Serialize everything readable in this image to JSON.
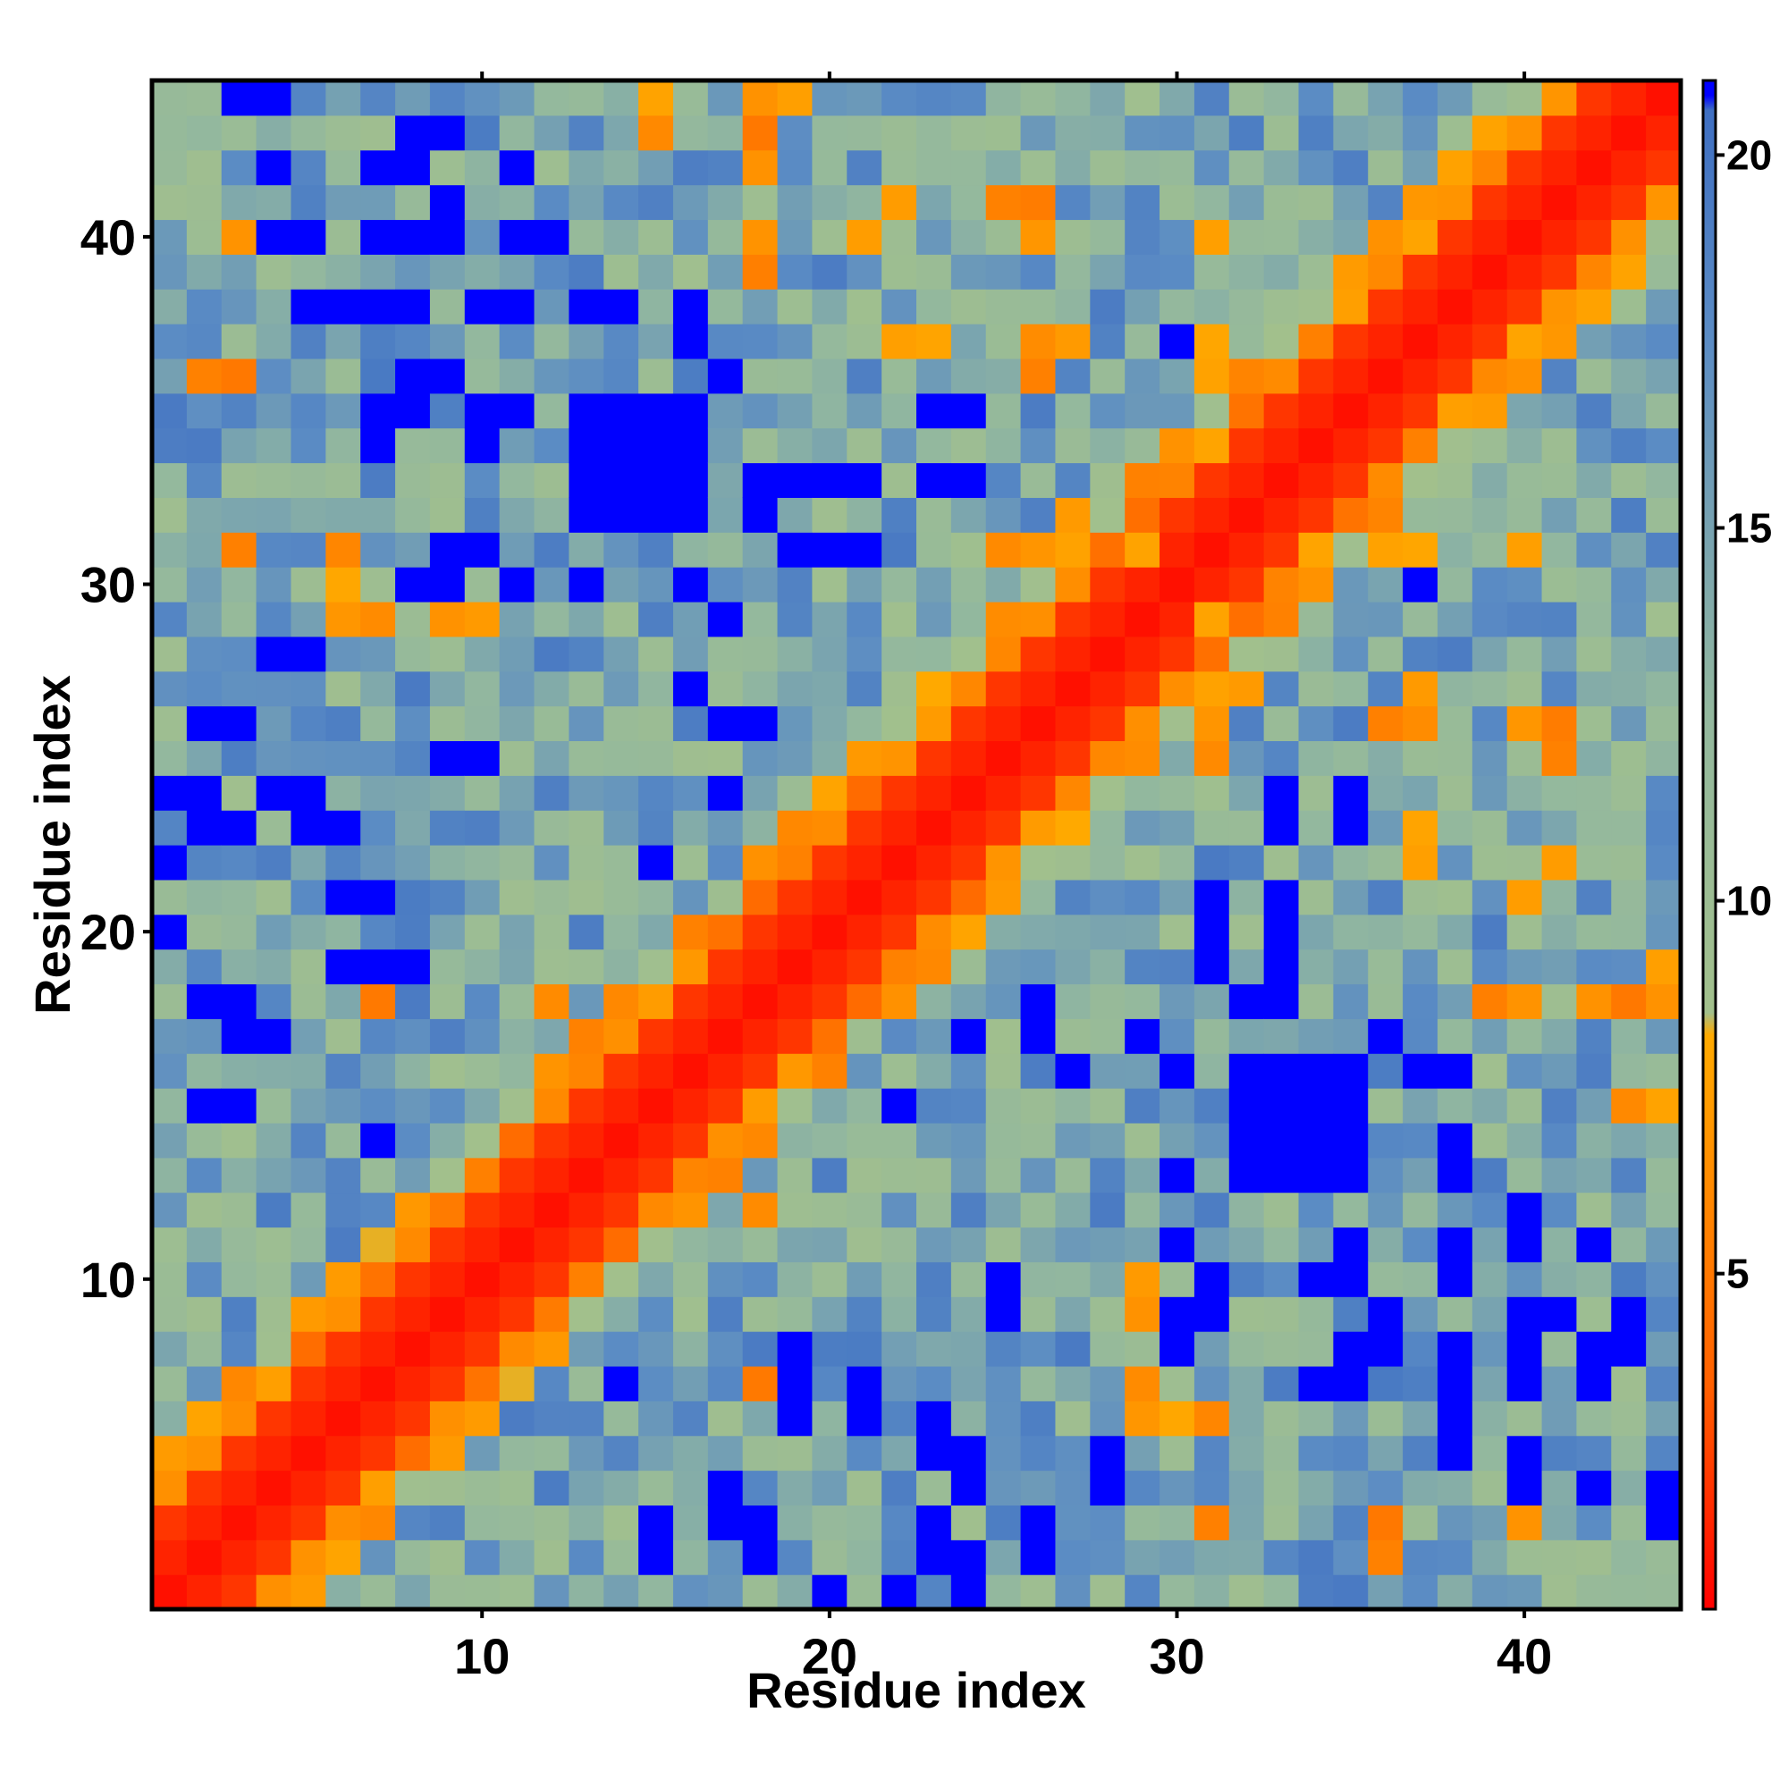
{
  "chart_data": {
    "type": "heatmap",
    "title": "",
    "xlabel": "Residue index",
    "ylabel": "Residue index",
    "n_residues": 44,
    "xlim": [
      0.5,
      44.5
    ],
    "ylim": [
      0.5,
      44.5
    ],
    "x_ticks": [
      10,
      20,
      30,
      40
    ],
    "y_ticks": [
      10,
      20,
      30,
      40
    ],
    "x_tick_labels": [
      "10",
      "20",
      "30",
      "40"
    ],
    "y_tick_labels": [
      "10",
      "20",
      "30",
      "40"
    ],
    "colorbar": {
      "range": [
        0.5,
        21
      ],
      "ticks": [
        5,
        10,
        15,
        20
      ],
      "tick_labels": [
        "5",
        "10",
        "15",
        "20"
      ],
      "placement": "right",
      "stops": [
        {
          "value": 0.5,
          "color": "#ff0000"
        },
        {
          "value": 3.5,
          "color": "#ff6000"
        },
        {
          "value": 8.2,
          "color": "#ffaa00"
        },
        {
          "value": 8.5,
          "color": "#a2c08c"
        },
        {
          "value": 12.5,
          "color": "#93b89e"
        },
        {
          "value": 17.5,
          "color": "#5b8cc4"
        },
        {
          "value": 20.6,
          "color": "#3f6fc2"
        },
        {
          "value": 20.8,
          "color": "#0000ff"
        }
      ]
    },
    "grid": false,
    "description_of_values": "Symmetric residue-residue distance map; diagonal band of small distances (red), mid-range distances green/grey-blue, large distances blue.",
    "block_contacts": [
      {
        "i_range": [
          13,
          16
        ],
        "j_range": [
          32,
          35
        ],
        "value": 21
      },
      {
        "i_range": [
          32,
          35
        ],
        "j_range": [
          13,
          16
        ],
        "value": 21
      }
    ],
    "extra_high_cells": [
      [
        4,
        44
      ],
      [
        8,
        43
      ],
      [
        9,
        43
      ],
      [
        11,
        42
      ],
      [
        5,
        40
      ],
      [
        8,
        40
      ],
      [
        9,
        40
      ],
      [
        12,
        40
      ],
      [
        6,
        38
      ],
      [
        8,
        38
      ],
      [
        11,
        38
      ],
      [
        13,
        38
      ],
      [
        14,
        38
      ],
      [
        16,
        38
      ],
      [
        30,
        37
      ],
      [
        9,
        36
      ],
      [
        17,
        36
      ],
      [
        8,
        35
      ],
      [
        11,
        35
      ],
      [
        24,
        35
      ],
      [
        13,
        34
      ],
      [
        14,
        34
      ],
      [
        16,
        34
      ],
      [
        18,
        33
      ],
      [
        19,
        33
      ],
      [
        20,
        33
      ],
      [
        24,
        33
      ],
      [
        19,
        31
      ],
      [
        21,
        31
      ],
      [
        10,
        31
      ],
      [
        9,
        30
      ],
      [
        13,
        30
      ],
      [
        16,
        30
      ],
      [
        17,
        29
      ],
      [
        5,
        28
      ],
      [
        16,
        27
      ],
      [
        3,
        26
      ],
      [
        17,
        26
      ],
      [
        18,
        26
      ],
      [
        10,
        25
      ],
      [
        1,
        24
      ],
      [
        2,
        24
      ],
      [
        5,
        24
      ],
      [
        17,
        24
      ],
      [
        3,
        23
      ],
      [
        6,
        23
      ],
      [
        33,
        23
      ],
      [
        35,
        23
      ],
      [
        1,
        22
      ],
      [
        15,
        22
      ],
      [
        7,
        21
      ],
      [
        33,
        21
      ],
      [
        1,
        20
      ],
      [
        31,
        20
      ],
      [
        33,
        20
      ],
      [
        7,
        19
      ],
      [
        8,
        19
      ],
      [
        3,
        18
      ],
      [
        26,
        18
      ],
      [
        32,
        18
      ],
      [
        4,
        17
      ],
      [
        24,
        17
      ],
      [
        26,
        17
      ],
      [
        29,
        17
      ],
      [
        27,
        16
      ],
      [
        30,
        16
      ],
      [
        37,
        16
      ],
      [
        38,
        16
      ],
      [
        3,
        15
      ],
      [
        22,
        15
      ],
      [
        7,
        14
      ],
      [
        38,
        14
      ],
      [
        38,
        13
      ],
      [
        30,
        11
      ],
      [
        40,
        11
      ],
      [
        34,
        10
      ],
      [
        35,
        10
      ],
      [
        38,
        10
      ],
      [
        25,
        9
      ],
      [
        31,
        9
      ],
      [
        41,
        9
      ],
      [
        30,
        8
      ],
      [
        36,
        8
      ],
      [
        40,
        8
      ],
      [
        42,
        8
      ],
      [
        19,
        7
      ],
      [
        34,
        7
      ],
      [
        35,
        7
      ],
      [
        38,
        7
      ],
      [
        40,
        7
      ],
      [
        42,
        7
      ],
      [
        19,
        6
      ],
      [
        21,
        6
      ],
      [
        38,
        5
      ],
      [
        23,
        5
      ],
      [
        24,
        4
      ],
      [
        28,
        4
      ],
      [
        40,
        4
      ],
      [
        42,
        4
      ],
      [
        17,
        3
      ],
      [
        44,
        3
      ],
      [
        15,
        2
      ],
      [
        18,
        2
      ],
      [
        23,
        2
      ],
      [
        26,
        2
      ],
      [
        24,
        1
      ],
      [
        20,
        1
      ],
      [
        22,
        1
      ]
    ],
    "extra_orange_cells": [
      [
        15,
        44
      ],
      [
        18,
        44
      ],
      [
        19,
        44
      ],
      [
        15,
        43
      ],
      [
        18,
        42
      ],
      [
        26,
        41
      ],
      [
        25,
        41
      ],
      [
        3,
        40
      ],
      [
        18,
        40
      ],
      [
        21,
        40
      ],
      [
        26,
        40
      ],
      [
        31,
        40
      ],
      [
        23,
        37
      ],
      [
        26,
        37
      ],
      [
        27,
        37
      ],
      [
        31,
        37
      ],
      [
        2,
        36
      ],
      [
        3,
        36
      ],
      [
        31,
        36
      ],
      [
        32,
        36
      ],
      [
        3,
        31
      ],
      [
        6,
        31
      ],
      [
        25,
        31
      ],
      [
        27,
        31
      ],
      [
        6,
        30
      ],
      [
        6,
        29
      ],
      [
        7,
        29
      ],
      [
        10,
        29
      ],
      [
        31,
        29
      ],
      [
        30,
        27
      ],
      [
        31,
        27
      ],
      [
        32,
        27
      ],
      [
        31,
        26
      ],
      [
        36,
        26
      ],
      [
        40,
        26
      ],
      [
        41,
        26
      ],
      [
        41,
        22
      ],
      [
        40,
        21
      ],
      [
        7,
        18
      ],
      [
        12,
        18
      ],
      [
        39,
        18
      ],
      [
        43,
        18
      ],
      [
        44,
        18
      ],
      [
        44,
        19
      ],
      [
        43,
        15
      ],
      [
        44,
        15
      ],
      [
        37,
        22
      ],
      [
        29,
        9
      ],
      [
        29,
        7
      ],
      [
        30,
        6
      ],
      [
        31,
        6
      ],
      [
        31,
        3
      ],
      [
        36,
        3
      ],
      [
        36,
        2
      ],
      [
        40,
        3
      ]
    ]
  }
}
